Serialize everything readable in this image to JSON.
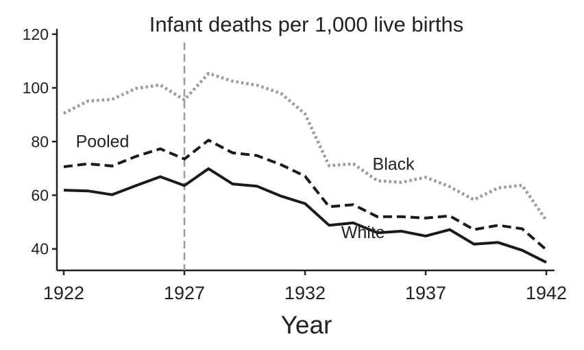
{
  "chart_data": {
    "type": "line",
    "title": "Infant deaths per 1,000 live births",
    "xlabel": "Year",
    "ylabel": "",
    "xlim": [
      1922,
      1942
    ],
    "ylim": [
      32,
      122
    ],
    "x_ticks": [
      1922,
      1927,
      1932,
      1937,
      1942
    ],
    "y_ticks": [
      40,
      60,
      80,
      100,
      120
    ],
    "grid": false,
    "legend": "none",
    "reference_line": {
      "x": 1927,
      "style": "dashed",
      "color": "#9a9a9a"
    },
    "x": [
      1922,
      1923,
      1924,
      1925,
      1926,
      1927,
      1928,
      1929,
      1930,
      1931,
      1932,
      1933,
      1934,
      1935,
      1936,
      1937,
      1938,
      1939,
      1940,
      1941,
      1942
    ],
    "series": [
      {
        "name": "Black",
        "style": "dotted",
        "color": "#9a9a9a",
        "values": [
          90.5,
          95.1,
          95.7,
          99.8,
          101.1,
          95.5,
          105.4,
          102.5,
          101.0,
          98.0,
          90.3,
          71.0,
          71.7,
          65.4,
          64.8,
          66.7,
          63.2,
          58.3,
          62.7,
          63.7,
          50.6
        ]
      },
      {
        "name": "Pooled",
        "style": "dashed",
        "color": "#1a1a1a",
        "values": [
          70.6,
          71.7,
          70.9,
          74.5,
          77.3,
          73.5,
          80.5,
          75.8,
          74.8,
          71.4,
          67.1,
          55.7,
          56.5,
          52.0,
          52.0,
          51.5,
          52.3,
          47.2,
          48.8,
          47.5,
          39.7
        ]
      },
      {
        "name": "White",
        "style": "solid",
        "color": "#1a1a1a",
        "values": [
          61.9,
          61.6,
          60.2,
          63.6,
          66.9,
          63.6,
          69.9,
          64.2,
          63.4,
          59.7,
          56.9,
          48.8,
          49.7,
          46.0,
          46.6,
          44.8,
          47.2,
          41.8,
          42.4,
          39.5,
          35.0
        ]
      }
    ]
  }
}
